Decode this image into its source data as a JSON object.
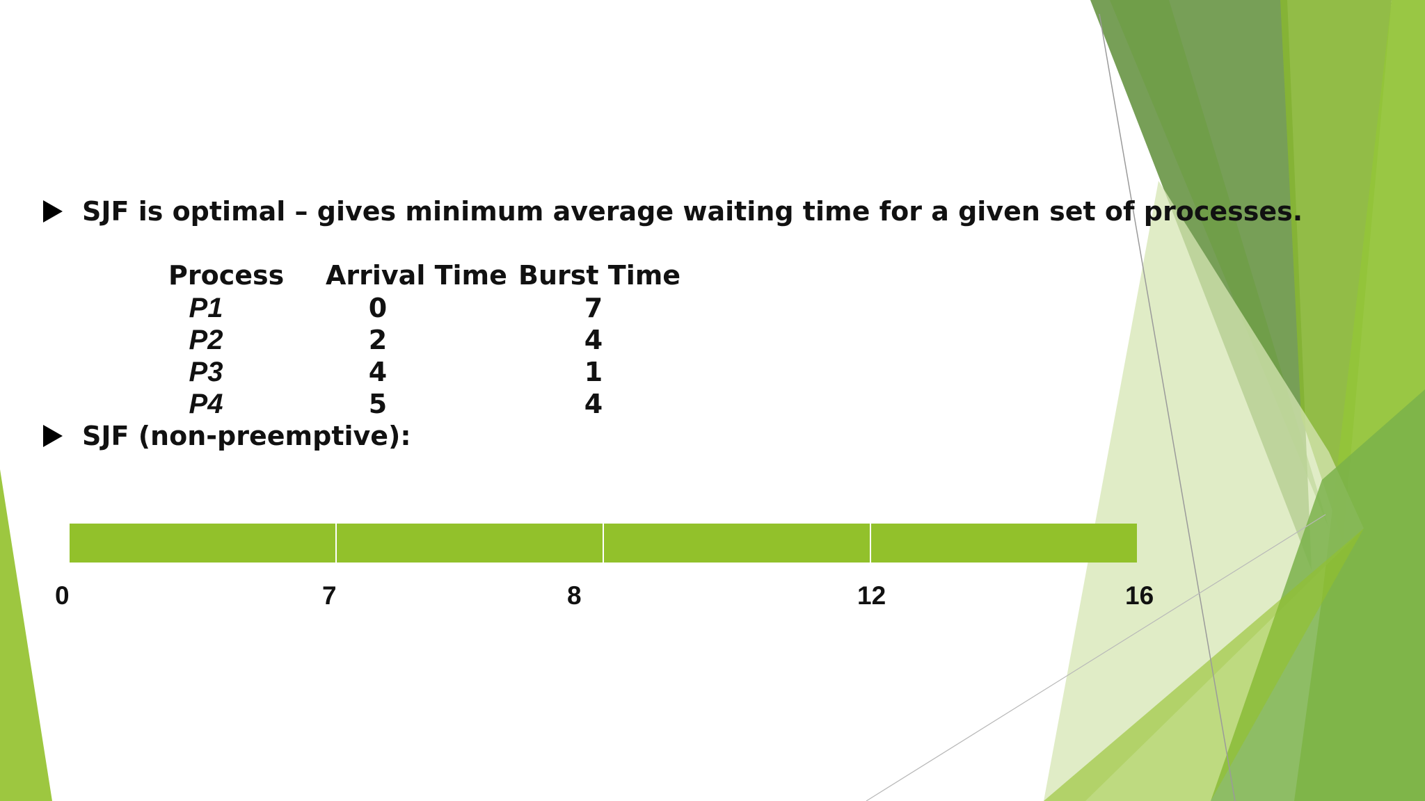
{
  "slide": {
    "bullet1": "SJF is optimal – gives minimum average waiting time for a given set of processes.",
    "bullet2": "SJF (non-preemptive):"
  },
  "table": {
    "headers": [
      "Process",
      "Arrival Time",
      "Burst Time"
    ],
    "rows": [
      {
        "process": "P1",
        "arrival": "0",
        "burst": "7"
      },
      {
        "process": "P2",
        "arrival": "2",
        "burst": "4"
      },
      {
        "process": "P3",
        "arrival": "4",
        "burst": "1"
      },
      {
        "process": "P4",
        "arrival": "5",
        "burst": "4"
      }
    ]
  },
  "gantt": {
    "segments": 4,
    "ticks": [
      "0",
      "7",
      "8",
      "12",
      "16"
    ],
    "bar_color": "#92c12b"
  },
  "colors": {
    "accent_green": "#92c12b",
    "dark_green": "#5f8e3a",
    "light_green": "#d5e6b3"
  }
}
